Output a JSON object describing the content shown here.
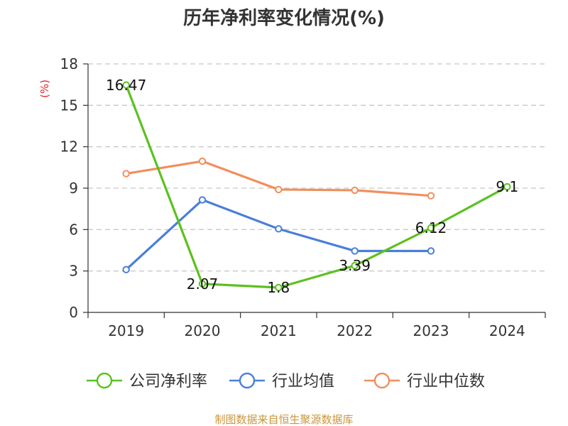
{
  "chart_data": {
    "type": "line",
    "title": "历年净利率变化情况(%)",
    "ylabel": "(%)",
    "xlabel": "",
    "categories": [
      "2019",
      "2020",
      "2021",
      "2022",
      "2023",
      "2024"
    ],
    "ylim": [
      0,
      18
    ],
    "yticks": [
      0,
      3,
      6,
      9,
      12,
      15,
      18
    ],
    "grid": "horizontal dashed",
    "legend_position": "bottom",
    "series": [
      {
        "name": "公司净利率",
        "color": "#5cc11f",
        "values": [
          16.47,
          2.07,
          1.8,
          3.39,
          6.12,
          9.1
        ],
        "labels": [
          "16.47",
          "2.07",
          "1.8",
          "3.39",
          "6.12",
          "9.1"
        ]
      },
      {
        "name": "行业均值",
        "color": "#4a7fd8",
        "values": [
          3.1,
          8.15,
          6.05,
          4.45,
          4.45,
          null
        ],
        "labels": null
      },
      {
        "name": "行业中位数",
        "color": "#f28e5c",
        "values": [
          10.05,
          10.95,
          8.9,
          8.85,
          8.45,
          null
        ],
        "labels": null
      }
    ]
  },
  "source": "制图数据来自恒生聚源数据库"
}
